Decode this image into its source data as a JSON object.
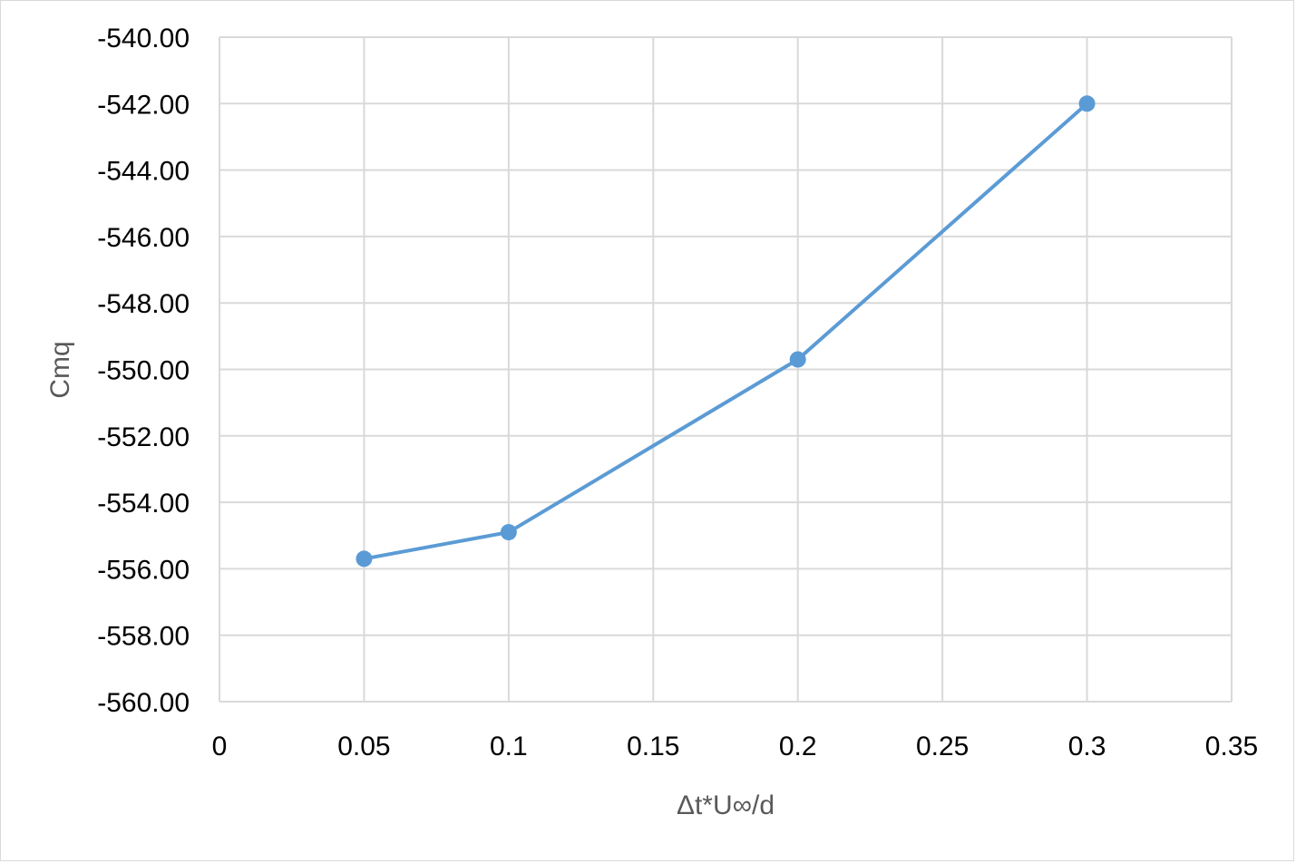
{
  "chart_data": {
    "type": "scatter",
    "title": "",
    "xlabel": "Δt*U∞/d",
    "ylabel": "Cmq",
    "xlim": [
      0,
      0.35
    ],
    "ylim": [
      -560,
      -540
    ],
    "xticks": [
      0,
      0.05,
      0.1,
      0.15,
      0.2,
      0.25,
      0.3,
      0.35
    ],
    "xtick_labels": [
      "0",
      "0.05",
      "0.1",
      "0.15",
      "0.2",
      "0.25",
      "0.3",
      "0.35"
    ],
    "yticks": [
      -540,
      -542,
      -544,
      -546,
      -548,
      -550,
      -552,
      -554,
      -556,
      -558,
      -560
    ],
    "ytick_labels": [
      "-540.00",
      "-542.00",
      "-544.00",
      "-546.00",
      "-548.00",
      "-550.00",
      "-552.00",
      "-554.00",
      "-556.00",
      "-558.00",
      "-560.00"
    ],
    "grid": "both",
    "legend": "none",
    "color": "#5b9bd5",
    "series": [
      {
        "x": [
          0.05,
          0.1,
          0.2,
          0.3
        ],
        "y": [
          -555.7,
          -554.9,
          -549.7,
          -542.0
        ],
        "style": "line-with-markers"
      }
    ]
  }
}
